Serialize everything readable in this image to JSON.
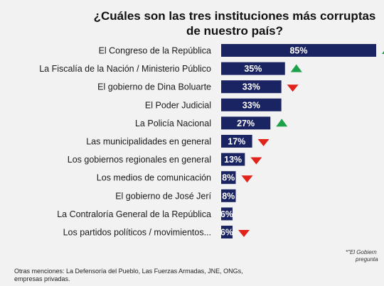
{
  "chart_data": {
    "type": "bar",
    "orientation": "horizontal",
    "title": "¿Cuáles son las tres instituciones más corruptas de nuestro país?",
    "categories": [
      "El Congreso de la República",
      "La Fiscalía de la Nación / Ministerio Público",
      "El gobierno de Dina Boluarte",
      "El Poder Judicial",
      "La Policía Nacional",
      "Las municipalidades en general",
      "Los gobiernos regionales en general",
      "Los medios de comunicación",
      "El gobierno de José Jerí",
      "La Contraloría General de la República",
      "Los partidos políticos / movimientos..."
    ],
    "values": [
      85,
      35,
      33,
      33,
      27,
      17,
      13,
      8,
      8,
      6,
      6
    ],
    "value_labels": [
      "85%",
      "35%",
      "33%",
      "33%",
      "27%",
      "17%",
      "13%",
      "8%",
      "8%",
      "6%",
      "6%"
    ],
    "trend": [
      "up",
      "up",
      "down",
      "none",
      "up",
      "down",
      "down",
      "down",
      "none",
      "none",
      "down"
    ],
    "xlim": [
      0,
      85
    ],
    "grid": false,
    "legend": "none",
    "colors": {
      "bar": "#1b2462",
      "up": "#1aa14a",
      "down": "#e2231a",
      "value_text": "#ffffff"
    }
  },
  "footnote": "Otras menciones: La Defensoría del Pueblo, Las Fuerzas Armadas, JNE, ONGs, empresas privadas.",
  "side_note": {
    "line1": "*\"El Gobiern",
    "line2": "pregunta"
  }
}
